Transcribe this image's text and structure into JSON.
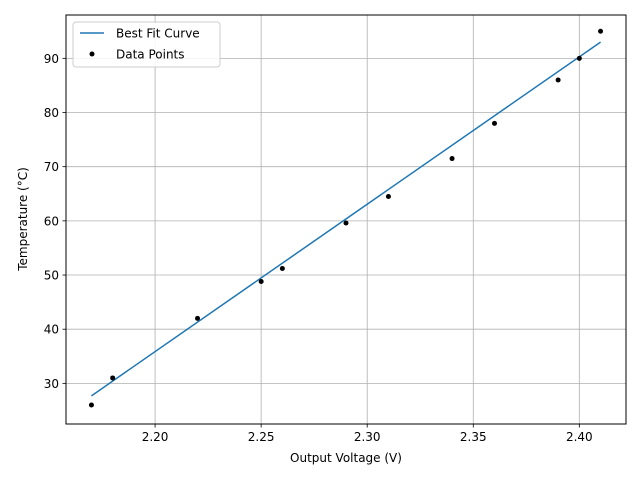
{
  "chart_data": {
    "type": "scatter",
    "title": "",
    "xlabel": "Output Voltage (V)",
    "ylabel": "Temperature (°C)",
    "xlim": [
      2.158,
      2.422
    ],
    "ylim": [
      22.5,
      98.0
    ],
    "xticks": [
      2.2,
      2.25,
      2.3,
      2.35,
      2.4
    ],
    "xtick_labels": [
      "2.20",
      "2.25",
      "2.30",
      "2.35",
      "2.40"
    ],
    "yticks": [
      30,
      40,
      50,
      60,
      70,
      80,
      90
    ],
    "ytick_labels": [
      "30",
      "40",
      "50",
      "60",
      "70",
      "80",
      "90"
    ],
    "grid": true,
    "legend_position": "top-left",
    "series": [
      {
        "name": "Best Fit Curve",
        "kind": "line",
        "color": "#1f77b4",
        "x": [
          2.17,
          2.41
        ],
        "y": [
          27.7,
          93.0
        ]
      },
      {
        "name": "Data Points",
        "kind": "scatter",
        "color": "#000000",
        "x": [
          2.17,
          2.18,
          2.22,
          2.25,
          2.26,
          2.29,
          2.31,
          2.34,
          2.36,
          2.39,
          2.4,
          2.41
        ],
        "y": [
          26.0,
          31.0,
          42.0,
          48.8,
          51.2,
          59.6,
          64.5,
          71.5,
          78.0,
          86.0,
          90.0,
          95.0
        ]
      }
    ]
  }
}
